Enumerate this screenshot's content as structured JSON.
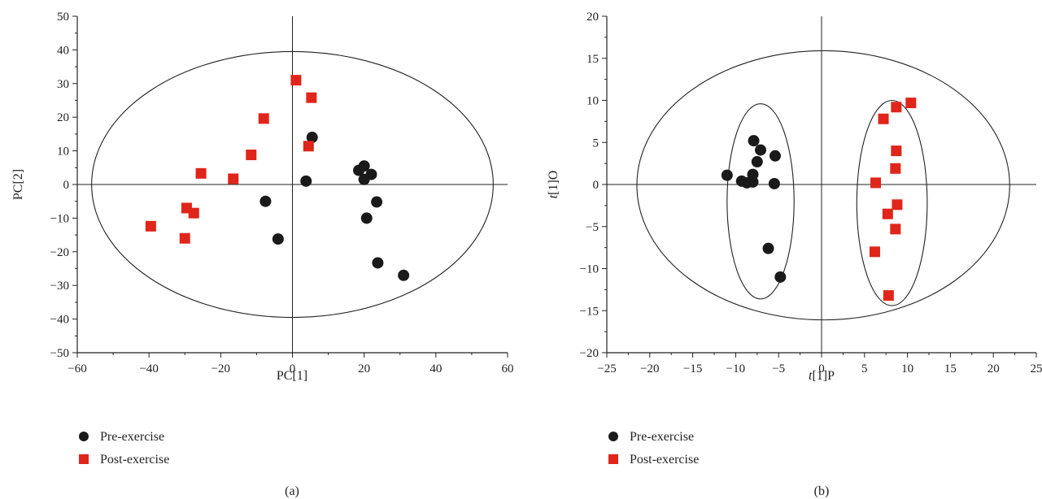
{
  "colors": {
    "pre": "#1a1a1a",
    "post": "#e0251b",
    "axis": "#222222"
  },
  "chart_data": [
    {
      "type": "scatter",
      "panel_label": "(a)",
      "xlabel": "PC[1]",
      "ylabel": "PC[2]",
      "xlim": [
        -60,
        60
      ],
      "ylim": [
        -50,
        50
      ],
      "xticks": [
        -60,
        -40,
        -20,
        0,
        20,
        40,
        60
      ],
      "yticks": [
        -50,
        -40,
        -30,
        -20,
        -10,
        0,
        10,
        20,
        30,
        40,
        50
      ],
      "xtick_labels": [
        "−60",
        "−40",
        "−20",
        "0",
        "20",
        "40",
        "60"
      ],
      "ytick_labels": [
        "−50",
        "−40",
        "−30",
        "−20",
        "−10",
        "0",
        "10",
        "20",
        "30",
        "40",
        "50"
      ],
      "ellipses": [
        {
          "cx": 0,
          "cy": 0,
          "rx": 56,
          "ry": 39.5
        }
      ],
      "legend": {
        "position": "bottom-left",
        "entries": [
          "Pre-exercise",
          "Post-exercise"
        ]
      },
      "series": [
        {
          "name": "Pre-exercise",
          "marker": "circle",
          "color": "#1a1a1a",
          "points": [
            [
              5.5,
              14
            ],
            [
              3.8,
              1
            ],
            [
              -7.5,
              -5
            ],
            [
              -4,
              -16.2
            ],
            [
              18.5,
              4.2
            ],
            [
              20,
              5.5
            ],
            [
              20,
              1.5
            ],
            [
              22,
              3
            ],
            [
              23.5,
              -5.2
            ],
            [
              20.7,
              -10
            ],
            [
              23.8,
              -23.3
            ],
            [
              31,
              -27
            ]
          ]
        },
        {
          "name": "Post-exercise",
          "marker": "square",
          "color": "#e0251b",
          "points": [
            [
              1,
              31
            ],
            [
              5.3,
              25.8
            ],
            [
              -8,
              19.6
            ],
            [
              4.5,
              11.4
            ],
            [
              -11.5,
              8.8
            ],
            [
              -25.5,
              3.3
            ],
            [
              -16.5,
              1.7
            ],
            [
              -29.5,
              -7
            ],
            [
              -27.5,
              -8.5
            ],
            [
              -39.5,
              -12.4
            ],
            [
              -30,
              -16
            ]
          ]
        }
      ]
    },
    {
      "type": "scatter",
      "panel_label": "(b)",
      "xlabel_italic": "t",
      "xlabel_rest": "[1]P",
      "ylabel_italic": "t",
      "ylabel_rest": "[1]O",
      "xlim": [
        -25,
        25
      ],
      "ylim": [
        -20,
        20
      ],
      "xticks": [
        -25,
        -20,
        -15,
        -10,
        -5,
        0,
        5,
        10,
        15,
        20,
        25
      ],
      "yticks": [
        -20,
        -15,
        -10,
        -5,
        0,
        5,
        10,
        15,
        20
      ],
      "xtick_labels": [
        "−25",
        "−20",
        "−15",
        "−10",
        "−5",
        "0",
        "5",
        "10",
        "15",
        "20",
        "25"
      ],
      "ytick_labels": [
        "−20",
        "−15",
        "−10",
        "−5",
        "0",
        "5",
        "10",
        "15",
        "20"
      ],
      "ellipses": [
        {
          "cx": 0.2,
          "cy": -0.1,
          "rx": 21.7,
          "ry": 16
        },
        {
          "cx": -7.1,
          "cy": -2,
          "rx": 3.9,
          "ry": 11.6
        },
        {
          "cx": 8.2,
          "cy": -2.2,
          "rx": 4.1,
          "ry": 12.2
        }
      ],
      "legend": {
        "position": "bottom-left",
        "entries": [
          "Pre-exercise",
          "Post-exercise"
        ]
      },
      "series": [
        {
          "name": "Pre-exercise",
          "marker": "circle",
          "color": "#1a1a1a",
          "points": [
            [
              -11,
              1.1
            ],
            [
              -9.3,
              0.4
            ],
            [
              -8.7,
              0.2
            ],
            [
              -8,
              0.3
            ],
            [
              -8,
              1.2
            ],
            [
              -7.5,
              2.7
            ],
            [
              -7.1,
              4.1
            ],
            [
              -7.9,
              5.2
            ],
            [
              -5.4,
              3.4
            ],
            [
              -5.5,
              0.1
            ],
            [
              -6.2,
              -7.6
            ],
            [
              -4.8,
              -11
            ]
          ]
        },
        {
          "name": "Post-exercise",
          "marker": "square",
          "color": "#e0251b",
          "points": [
            [
              7.2,
              7.8
            ],
            [
              8.7,
              9.2
            ],
            [
              10.4,
              9.7
            ],
            [
              8.7,
              4
            ],
            [
              8.6,
              1.9
            ],
            [
              6.3,
              0.2
            ],
            [
              8.8,
              -2.4
            ],
            [
              7.7,
              -3.5
            ],
            [
              8.6,
              -5.3
            ],
            [
              6.2,
              -8
            ],
            [
              7.8,
              -13.2
            ]
          ]
        }
      ]
    }
  ]
}
